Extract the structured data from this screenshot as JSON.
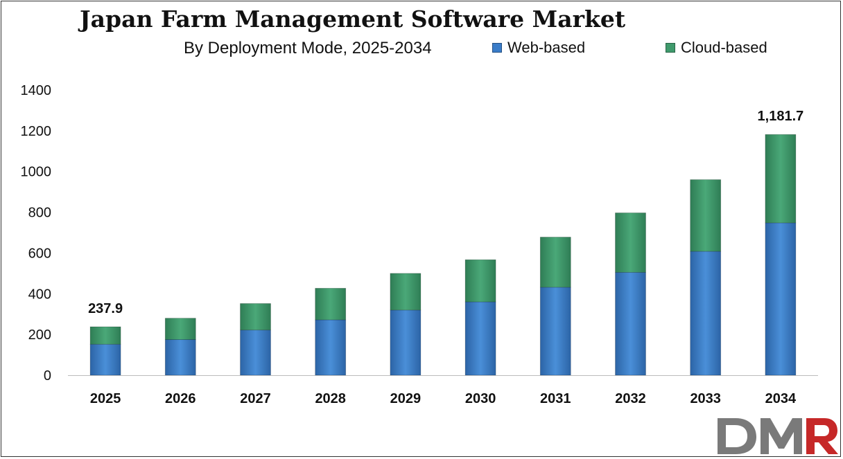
{
  "chart_data": {
    "type": "bar",
    "stacked": true,
    "title": "Japan Farm Management Software Market",
    "subtitle": "By Deployment Mode, 2025-2034",
    "xlabel": "",
    "ylabel": "",
    "categories": [
      "2025",
      "2026",
      "2027",
      "2028",
      "2029",
      "2030",
      "2031",
      "2032",
      "2033",
      "2034"
    ],
    "series": [
      {
        "name": "Web-based",
        "color": "#3a7cc8",
        "values": [
          152,
          175,
          222,
          272,
          320,
          360,
          432,
          505,
          608,
          748
        ]
      },
      {
        "name": "Cloud-based",
        "color": "#3f9a6c",
        "values": [
          85.9,
          105,
          130,
          155,
          180,
          207,
          246,
          292,
          352,
          433.7
        ]
      }
    ],
    "ylim": [
      0,
      1400
    ],
    "yticks": [
      "0",
      "200",
      "400",
      "600",
      "800",
      "1000",
      "1200",
      "1400"
    ],
    "grid": false,
    "legend_position": "top-right",
    "annotations": [
      {
        "category": "2025",
        "text": "237.9"
      },
      {
        "category": "2034",
        "text": "1,181.7"
      }
    ]
  },
  "logo": {
    "text": "DMR",
    "colors": [
      "#7a7a7a",
      "#c62828"
    ]
  }
}
